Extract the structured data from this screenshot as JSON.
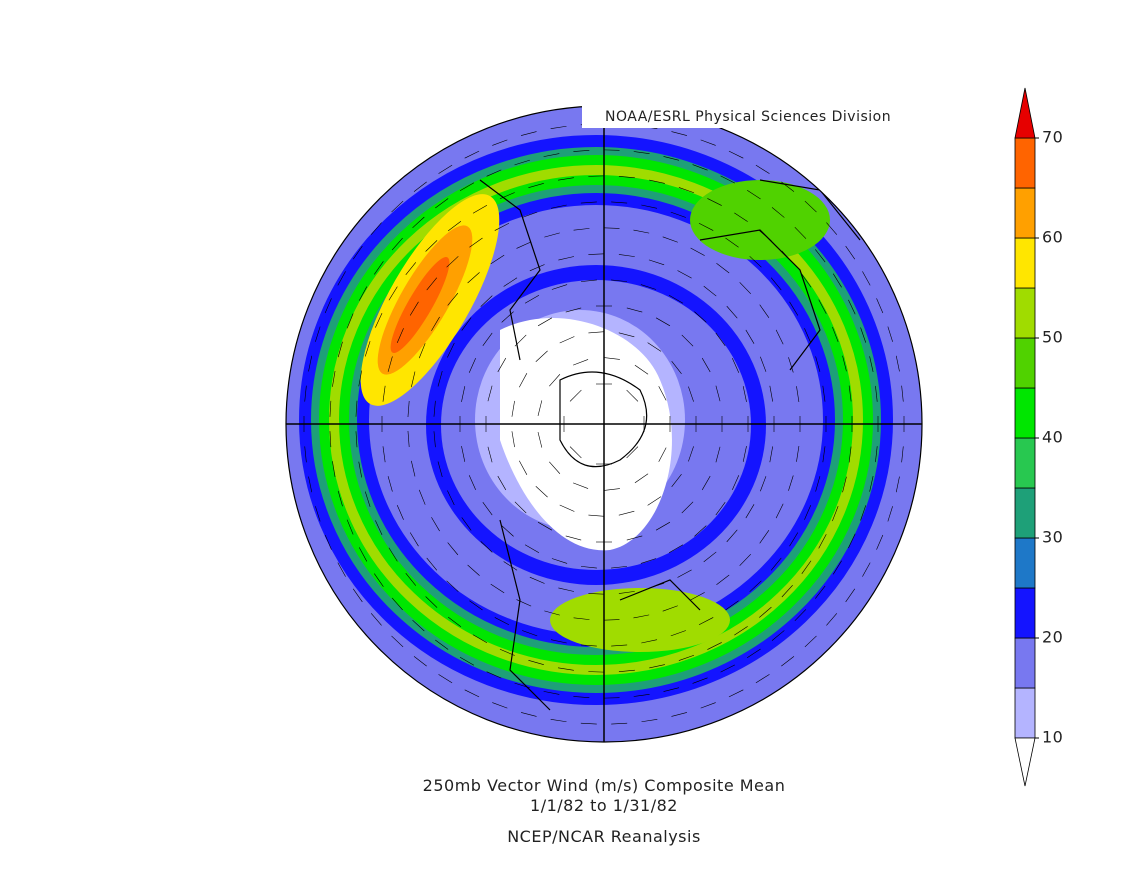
{
  "header": {
    "credit": "NOAA/ESRL Physical Sciences Division"
  },
  "colorbar": {
    "levels": [
      10,
      15,
      20,
      25,
      30,
      35,
      40,
      45,
      50,
      55,
      60,
      65,
      70
    ],
    "colors": [
      "#b4b4ff",
      "#7878f0",
      "#1414ff",
      "#1e78c8",
      "#1ea078",
      "#28c850",
      "#00e600",
      "#50d200",
      "#a0dc00",
      "#ffe600",
      "#ffa000",
      "#ff6400"
    ],
    "under_color": "#ffffff",
    "over_color": "#e60000",
    "ticks": [
      10,
      20,
      30,
      40,
      50,
      60,
      70
    ]
  },
  "caption": {
    "line1": "250mb Vector Wind (m/s) Composite Mean",
    "line2": "1/1/82  to 1/31/82",
    "line3": "NCEP/NCAR Reanalysis"
  }
}
